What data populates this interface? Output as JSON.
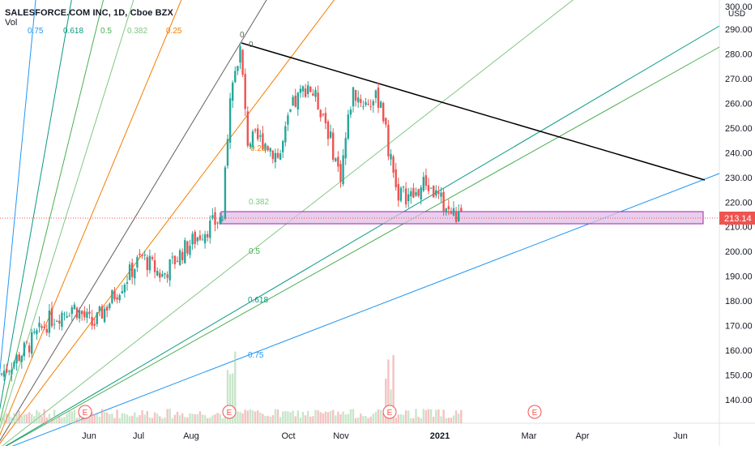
{
  "header": {
    "title": "SALESFORCE.COM INC, 1D, Cboe BZX",
    "vol_label": "Vol"
  },
  "fan_labels": [
    {
      "text": "0.75",
      "color": "#2196f3"
    },
    {
      "text": "0.618",
      "color": "#089981"
    },
    {
      "text": "0.5",
      "color": "#4caf50"
    },
    {
      "text": "0.382",
      "color": "#81c784"
    },
    {
      "text": "0.25",
      "color": "#f57c00"
    }
  ],
  "price_axis": {
    "currency": "USD",
    "top_label": "300.00",
    "ticks": [
      "290.00",
      "280.00",
      "270.00",
      "260.00",
      "250.00",
      "240.00",
      "230.00",
      "220.00",
      "210.00",
      "200.00",
      "190.00",
      "180.00",
      "170.00",
      "160.00",
      "150.00",
      "140.00"
    ],
    "last_price": "213.14",
    "last_price_color": "#ef5350"
  },
  "time_axis": {
    "labels": [
      "Jun",
      "Jul",
      "Aug",
      "Oct",
      "Nov",
      "2021",
      "Mar",
      "Apr",
      "Jun"
    ]
  },
  "drawing_labels": {
    "top": "0",
    "r025": "0.25",
    "r0382": "0.382",
    "r05": "0.5",
    "r0618": "0.618",
    "r075": "0.75"
  },
  "earnings_badge": "E",
  "colors": {
    "up": "#26a69a",
    "down": "#ef5350",
    "zone_fill": "#e1bee7",
    "zone_border": "#9c27b0",
    "trendline": "#000000"
  },
  "chart_data": {
    "type": "candlestick",
    "title": "SALESFORCE.COM INC, 1D, Cboe BZX",
    "ylabel": "USD",
    "ylim": [
      128,
      302
    ],
    "last_price": 213.14,
    "x_tick_labels": [
      "Jun",
      "Jul",
      "Aug",
      "Oct",
      "Nov",
      "2021",
      "Mar",
      "Apr",
      "Jun"
    ],
    "volume_spikes": [
      "Aug 2020",
      "Nov 2020"
    ],
    "earnings_markers": 4,
    "zone": {
      "top": 216.5,
      "bottom": 211
    },
    "trendline": {
      "from": 283.5,
      "to": 228.5
    }
  }
}
